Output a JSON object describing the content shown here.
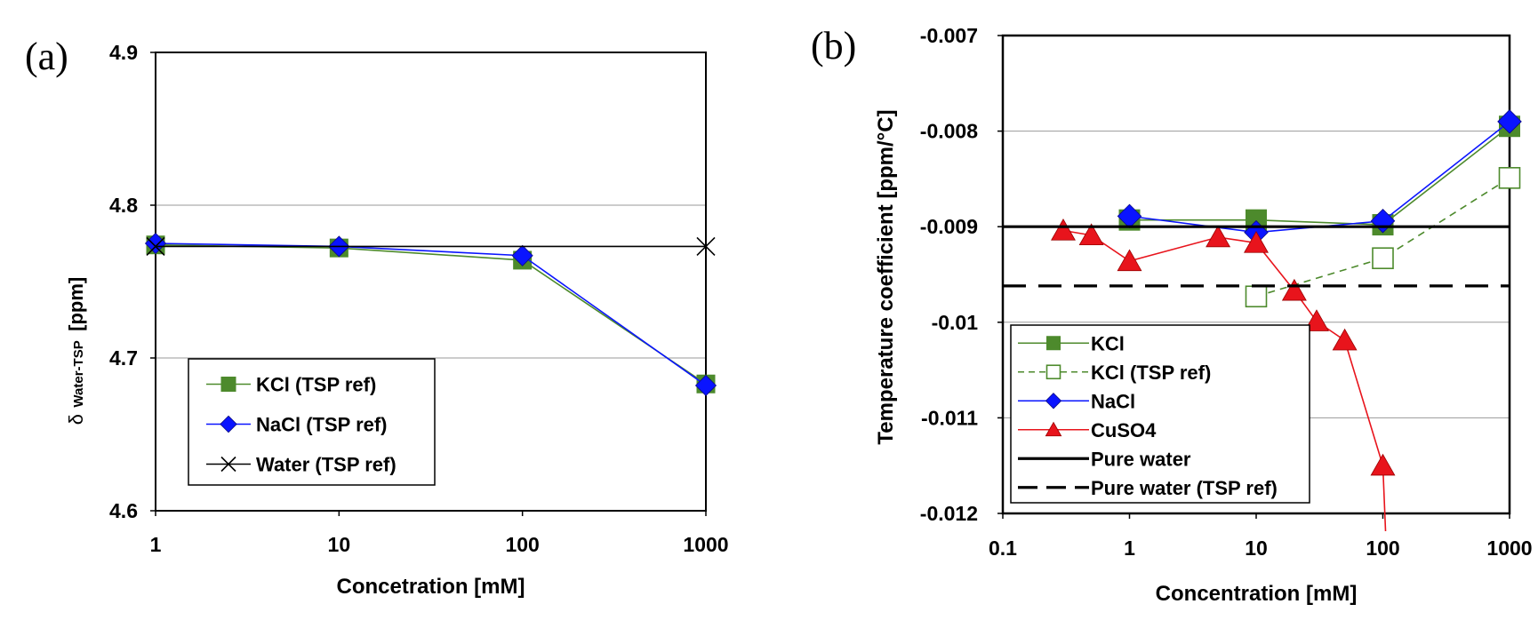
{
  "chart_data": [
    {
      "panel": "(a)",
      "type": "line",
      "xscale": "log",
      "xlabel": "Concetration [mM]",
      "ylabel_symbol": "δ",
      "ylabel_sub": "Water-TSP",
      "ylabel_unit": "[ppm]",
      "x_ticks": [
        1,
        10,
        100,
        1000
      ],
      "x_tick_labels": [
        "1",
        "10",
        "100",
        "1000"
      ],
      "y_ticks": [
        4.6,
        4.7,
        4.8,
        4.9
      ],
      "y_tick_labels": [
        "4.6",
        "4.7",
        "4.8",
        "4.9"
      ],
      "xlim": [
        1,
        1000
      ],
      "ylim": [
        4.6,
        4.9
      ],
      "grid": "horizontal",
      "legend_position": "lower-left",
      "series": [
        {
          "name": "KCl (TSP ref)",
          "color": "#4d8a2c",
          "marker": "square-filled",
          "dash": "solid",
          "x": [
            1,
            10,
            100,
            1000
          ],
          "y": [
            4.774,
            4.772,
            4.764,
            4.683
          ]
        },
        {
          "name": "NaCl (TSP ref)",
          "color": "#0a14ff",
          "marker": "diamond-filled",
          "dash": "solid",
          "x": [
            1,
            10,
            100,
            1000
          ],
          "y": [
            4.775,
            4.773,
            4.767,
            4.682
          ]
        },
        {
          "name": "Water (TSP ref)",
          "color": "#000000",
          "marker": "cross",
          "dash": "solid",
          "x": [
            1,
            1000
          ],
          "y": [
            4.773,
            4.773
          ]
        }
      ]
    },
    {
      "panel": "(b)",
      "type": "line",
      "xscale": "log",
      "xlabel": "Concentration [mM]",
      "ylabel": "Temperature coefficient [ppm/°C]",
      "x_ticks": [
        0.1,
        1,
        10,
        100,
        1000
      ],
      "x_tick_labels": [
        "0.1",
        "1",
        "10",
        "100",
        "1000"
      ],
      "y_ticks": [
        -0.012,
        -0.011,
        -0.01,
        -0.009,
        -0.008,
        -0.007
      ],
      "y_tick_labels": [
        "-0.012",
        "-0.011",
        "-0.01",
        "-0.009",
        "-0.008",
        "-0.007"
      ],
      "xlim": [
        0.1,
        1000
      ],
      "ylim": [
        -0.012,
        -0.007
      ],
      "grid": "horizontal",
      "legend_position": "lower-left",
      "series": [
        {
          "name": "KCl",
          "color": "#4d8a2c",
          "marker": "square-filled",
          "dash": "solid",
          "x": [
            1,
            10,
            100,
            1000
          ],
          "y": [
            -0.00893,
            -0.00893,
            -0.00898,
            -0.00795
          ]
        },
        {
          "name": "KCl (TSP ref)",
          "color": "#4d8a2c",
          "marker": "square-open",
          "dash": "dashed",
          "x": [
            10,
            100,
            1000
          ],
          "y": [
            -0.00973,
            -0.00933,
            -0.00849
          ]
        },
        {
          "name": "NaCl",
          "color": "#0a14ff",
          "marker": "diamond-filled",
          "dash": "solid",
          "x": [
            1,
            10,
            100,
            1000
          ],
          "y": [
            -0.00889,
            -0.00906,
            -0.00894,
            -0.0079
          ]
        },
        {
          "name": "CuSO4",
          "color": "#e8141c",
          "marker": "triangle-filled",
          "dash": "solid",
          "x": [
            0.3,
            0.5,
            1,
            5,
            10,
            20,
            30,
            50,
            100
          ],
          "y": [
            -0.00904,
            -0.00909,
            -0.00936,
            -0.00911,
            -0.00917,
            -0.00967,
            -0.00999,
            -0.01019,
            -0.0115
          ],
          "continues_to": {
            "x": 105,
            "y": -0.0122
          }
        },
        {
          "name": "Pure water",
          "color": "#000000",
          "marker": "none",
          "dash": "solid",
          "x": [
            0.1,
            1000
          ],
          "y": [
            -0.009,
            -0.009
          ]
        },
        {
          "name": "Pure water (TSP ref)",
          "color": "#000000",
          "marker": "none",
          "dash": "long-dash",
          "x": [
            0.1,
            1000
          ],
          "y": [
            -0.00962,
            -0.00962
          ]
        }
      ]
    }
  ]
}
